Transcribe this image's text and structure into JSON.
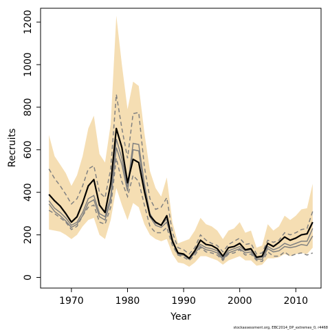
{
  "chart_data": {
    "type": "line",
    "xlabel": "Year",
    "ylabel": "Recruits",
    "xlim": [
      1964.5,
      2014.5
    ],
    "ylim": [
      -50,
      1265
    ],
    "x_ticks": [
      1970,
      1980,
      1990,
      2000,
      2010
    ],
    "y_ticks": [
      0,
      200,
      400,
      600,
      800,
      1000,
      1200
    ],
    "grid": false,
    "footnote": "stockassessment.org, EBC2014_DP_extremes_0, r4468",
    "colors": {
      "band": "#f5deb3",
      "median": "#000000",
      "inner_band": "#808080",
      "dashed": "#808080"
    },
    "x": [
      1966,
      1967,
      1968,
      1969,
      1970,
      1971,
      1972,
      1973,
      1974,
      1975,
      1976,
      1977,
      1978,
      1979,
      1980,
      1981,
      1982,
      1983,
      1984,
      1985,
      1986,
      1987,
      1988,
      1989,
      1990,
      1991,
      1992,
      1993,
      1994,
      1995,
      1996,
      1997,
      1998,
      1999,
      2000,
      2001,
      2002,
      2003,
      2004,
      2005,
      2006,
      2007,
      2008,
      2009,
      2010,
      2011,
      2012,
      2013
    ],
    "series": [
      {
        "role": "upper_band",
        "values": [
          670,
          570,
          530,
          490,
          430,
          480,
          570,
          700,
          760,
          580,
          540,
          720,
          1230,
          1000,
          790,
          920,
          900,
          680,
          500,
          420,
          380,
          470,
          260,
          160,
          170,
          180,
          220,
          280,
          250,
          240,
          220,
          180,
          220,
          230,
          260,
          210,
          220,
          140,
          150,
          250,
          220,
          240,
          290,
          270,
          290,
          320,
          325,
          440
        ]
      },
      {
        "role": "lower_band",
        "values": [
          225,
          220,
          215,
          200,
          180,
          200,
          240,
          270,
          280,
          200,
          180,
          270,
          420,
          340,
          270,
          350,
          330,
          250,
          200,
          180,
          170,
          180,
          110,
          70,
          65,
          50,
          70,
          100,
          100,
          90,
          80,
          60,
          80,
          90,
          100,
          80,
          80,
          55,
          60,
          90,
          90,
          95,
          110,
          100,
          110,
          115,
          110,
          140
        ]
      },
      {
        "role": "upper_dashed",
        "values": [
          510,
          465,
          430,
          390,
          345,
          370,
          430,
          510,
          525,
          400,
          375,
          510,
          860,
          700,
          560,
          770,
          775,
          520,
          370,
          320,
          330,
          375,
          210,
          140,
          130,
          110,
          140,
          200,
          175,
          160,
          150,
          120,
          155,
          170,
          185,
          155,
          160,
          110,
          115,
          175,
          165,
          175,
          210,
          200,
          210,
          225,
          230,
          310
        ]
      },
      {
        "role": "lower_dashed",
        "values": [
          315,
          300,
          280,
          260,
          225,
          240,
          290,
          330,
          340,
          260,
          250,
          330,
          560,
          450,
          380,
          480,
          450,
          340,
          240,
          210,
          210,
          235,
          150,
          105,
          95,
          80,
          105,
          140,
          120,
          115,
          105,
          80,
          110,
          115,
          130,
          105,
          110,
          80,
          75,
          120,
          100,
          100,
          120,
          100,
          110,
          115,
          105,
          115
        ]
      },
      {
        "role": "inner_upper",
        "values": [
          360,
          325,
          305,
          280,
          245,
          260,
          305,
          370,
          385,
          300,
          285,
          380,
          650,
          560,
          425,
          630,
          625,
          440,
          300,
          255,
          245,
          275,
          180,
          110,
          110,
          90,
          125,
          155,
          140,
          135,
          125,
          90,
          125,
          135,
          145,
          125,
          130,
          90,
          95,
          145,
          130,
          140,
          160,
          150,
          160,
          170,
          170,
          230
        ]
      },
      {
        "role": "inner_lower",
        "values": [
          345,
          310,
          290,
          265,
          235,
          250,
          290,
          350,
          365,
          285,
          270,
          360,
          610,
          530,
          405,
          600,
          595,
          420,
          285,
          245,
          235,
          260,
          170,
          105,
          105,
          85,
          115,
          145,
          130,
          125,
          115,
          85,
          115,
          125,
          135,
          115,
          120,
          85,
          85,
          135,
          120,
          125,
          145,
          140,
          145,
          155,
          150,
          195
        ]
      },
      {
        "role": "median",
        "values": [
          390,
          360,
          335,
          300,
          260,
          285,
          350,
          430,
          460,
          340,
          305,
          440,
          700,
          610,
          445,
          555,
          540,
          405,
          290,
          260,
          245,
          290,
          170,
          115,
          110,
          90,
          125,
          175,
          155,
          150,
          135,
          100,
          140,
          145,
          160,
          130,
          135,
          95,
          100,
          160,
          145,
          165,
          190,
          175,
          185,
          200,
          205,
          260
        ]
      }
    ]
  }
}
